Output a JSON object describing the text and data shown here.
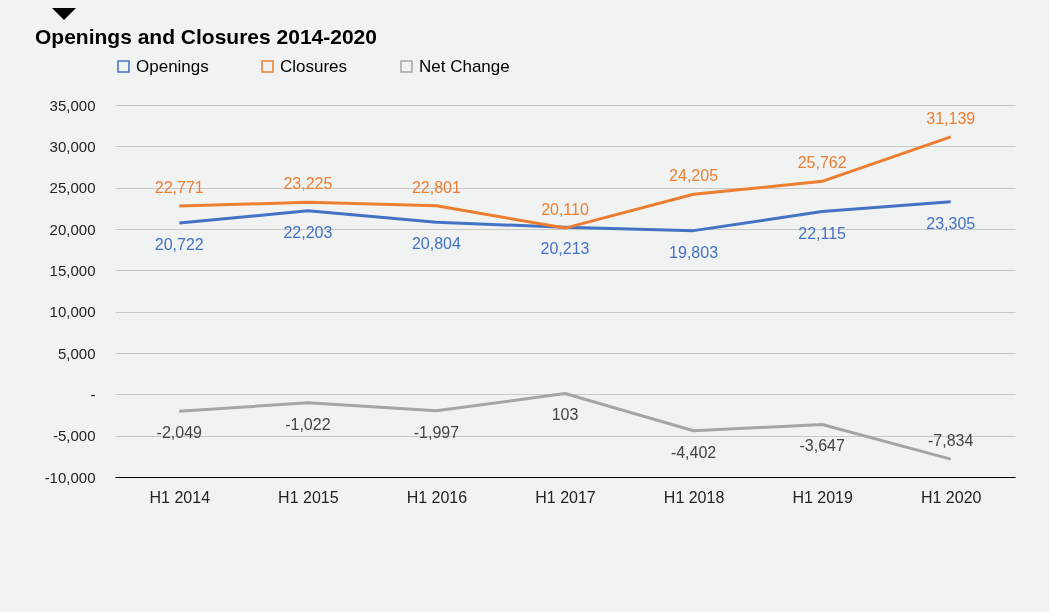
{
  "chart_data": {
    "type": "line",
    "title": "Openings and Closures 2014-2020",
    "categories": [
      "H1 2014",
      "H1 2015",
      "H1 2016",
      "H1 2017",
      "H1 2018",
      "H1 2019",
      "H1 2020"
    ],
    "series": [
      {
        "name": "Openings",
        "color": "#4472c4",
        "values": [
          20722,
          22203,
          20804,
          20213,
          19803,
          22115,
          23305
        ],
        "value_labels": [
          "20,722",
          "22,203",
          "20,804",
          "20,213",
          "19,803",
          "22,115",
          "23,305"
        ]
      },
      {
        "name": "Closures",
        "color": "#ed7d31",
        "values": [
          22771,
          23225,
          22801,
          20110,
          24205,
          25762,
          31139
        ],
        "value_labels": [
          "22,771",
          "23,225",
          "22,801",
          "20,110",
          "24,205",
          "25,762",
          "31,139"
        ]
      },
      {
        "name": "Net Change",
        "color": "#a5a5a5",
        "values": [
          -2049,
          -1022,
          -1997,
          103,
          -4402,
          -3647,
          -7834
        ],
        "value_labels": [
          "-2,049",
          "-1,022",
          "-1,997",
          "103",
          "-4,402",
          "-3,647",
          "-7,834"
        ]
      }
    ],
    "ylim": [
      -10000,
      35000
    ],
    "yticks": [
      {
        "value": -10000,
        "label": "-10,000"
      },
      {
        "value": -5000,
        "label": "-5,000"
      },
      {
        "value": 0,
        "label": "-"
      },
      {
        "value": 5000,
        "label": "5,000"
      },
      {
        "value": 10000,
        "label": "10,000"
      },
      {
        "value": 15000,
        "label": "15,000"
      },
      {
        "value": 20000,
        "label": "20,000"
      },
      {
        "value": 25000,
        "label": "25,000"
      },
      {
        "value": 30000,
        "label": "30,000"
      },
      {
        "value": 35000,
        "label": "35,000"
      }
    ],
    "grid": "y",
    "legend": "top left",
    "marker": "none",
    "line_style": "solid"
  }
}
